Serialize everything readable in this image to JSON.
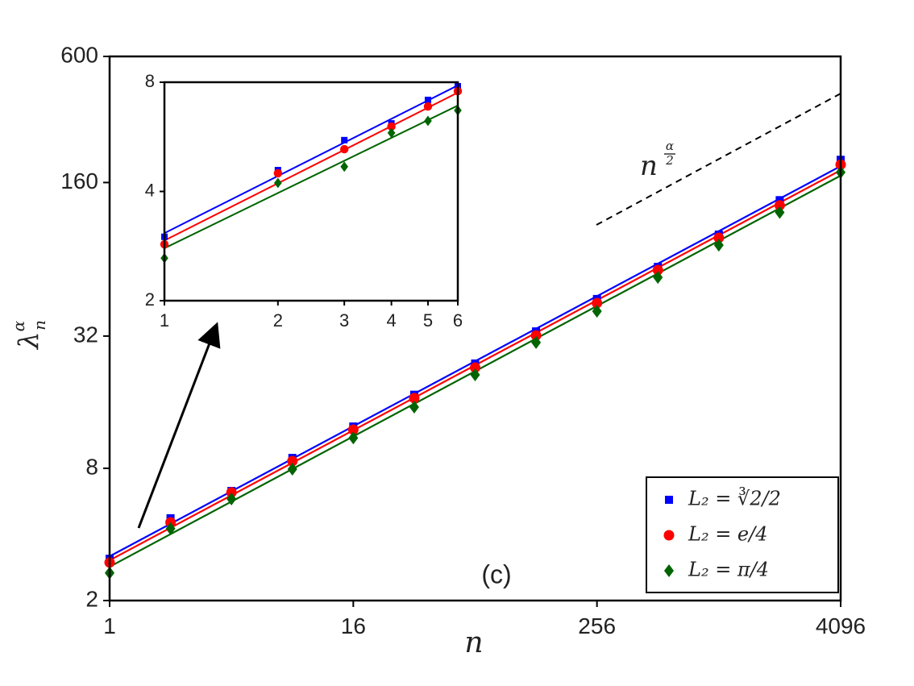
{
  "chart_data": [
    {
      "type": "scatter",
      "xscale": "log",
      "yscale": "log",
      "xlabel": "n",
      "ylabel": {
        "base": "λ",
        "sup": "α",
        "sub": "n"
      },
      "annotations": {
        "panel": "(c)",
        "slope": {
          "base": "n",
          "sup_num": "α",
          "sup_den": "2"
        }
      },
      "xlim": [
        1,
        4096
      ],
      "ylim": [
        2,
        600
      ],
      "xticks": [
        1,
        16,
        256,
        4096
      ],
      "yticks": [
        2,
        8,
        32,
        160,
        600
      ],
      "legend": "lower right",
      "x": [
        1,
        2,
        4,
        8,
        16,
        32,
        64,
        128,
        256,
        512,
        1024,
        2048,
        4096
      ],
      "series": [
        {
          "name": "L₂ = ∛2/2",
          "color": "#0000ff",
          "marker": "square",
          "values": [
            3.1,
            4.74,
            6.31,
            8.92,
            12.4,
            17.3,
            24.0,
            33.6,
            47.2,
            66.1,
            92.7,
            133,
            203
          ],
          "fit": [
            3.18,
            190
          ]
        },
        {
          "name": "L₂ = e/4",
          "color": "#ff0000",
          "marker": "circle",
          "values": [
            2.98,
            4.54,
            6.21,
            8.63,
            12.0,
            16.7,
            23.0,
            32.2,
            45.2,
            63.9,
            89.6,
            126,
            193
          ],
          "fit": [
            3.05,
            182
          ]
        },
        {
          "name": "L₂ = π/4",
          "color": "#006400",
          "marker": "diamond",
          "values": [
            2.67,
            4.25,
            5.8,
            7.93,
            11.0,
            15.2,
            21.3,
            29.9,
            41.5,
            59.2,
            83.0,
            117,
            178
          ],
          "fit": [
            2.85,
            172
          ]
        }
      ]
    },
    {
      "type": "scatter",
      "xscale": "log",
      "yscale": "log",
      "xlim": [
        1,
        6
      ],
      "ylim": [
        2,
        8
      ],
      "xticks": [
        1,
        2,
        3,
        4,
        5,
        6
      ],
      "yticks": [
        2,
        4,
        8
      ],
      "x": [
        1,
        2,
        3,
        4,
        5,
        6
      ],
      "series": [
        {
          "color": "#0000ff",
          "marker": "square",
          "values": [
            3.0,
            4.58,
            5.54,
            6.16,
            7.15,
            7.8
          ],
          "fit": [
            3.07,
            7.84
          ]
        },
        {
          "color": "#ff0000",
          "marker": "circle",
          "values": [
            2.86,
            4.49,
            5.23,
            6.04,
            6.86,
            7.56
          ],
          "fit": [
            2.93,
            7.49
          ]
        },
        {
          "color": "#006400",
          "marker": "diamond",
          "values": [
            2.62,
            4.22,
            4.68,
            5.8,
            6.26,
            6.69
          ],
          "fit": [
            2.79,
            6.9
          ]
        }
      ]
    }
  ]
}
